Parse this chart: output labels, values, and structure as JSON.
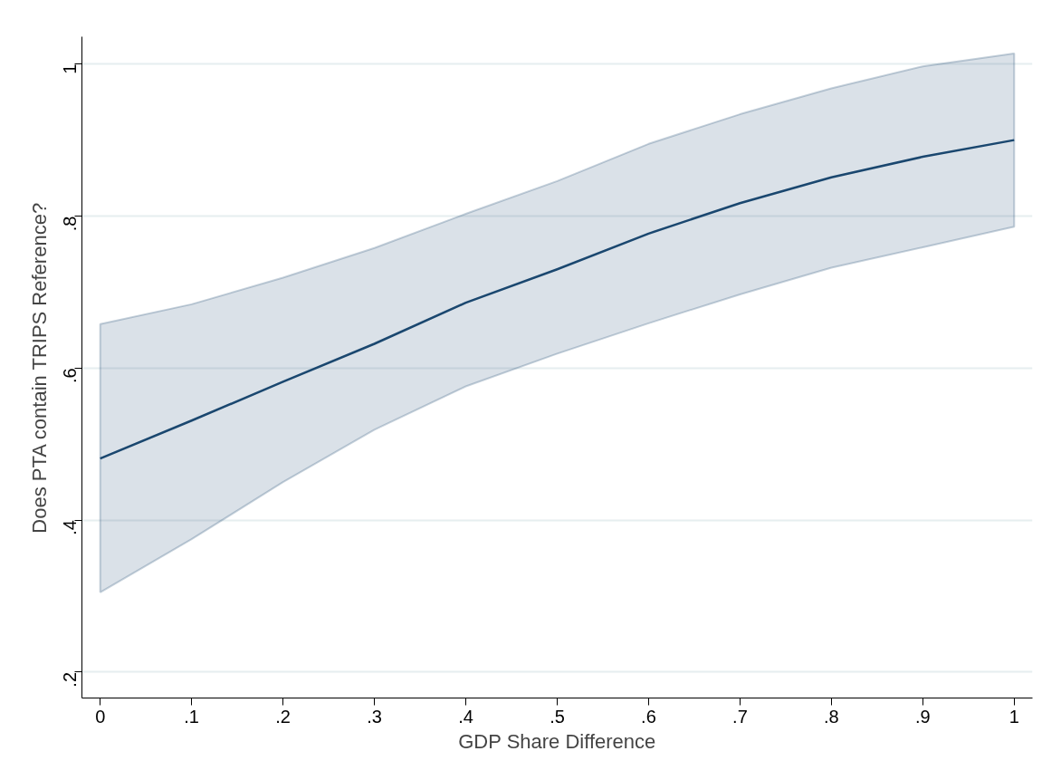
{
  "chart_data": {
    "type": "line",
    "xlabel": "GDP Share Difference",
    "ylabel": "Does PTA contain TRIPS Reference?",
    "x": [
      0,
      0.1,
      0.2,
      0.3,
      0.4,
      0.5,
      0.6,
      0.7,
      0.8,
      0.9,
      1
    ],
    "series": [
      {
        "color": "#1a476f",
        "values": [
          0.481,
          0.531,
          0.582,
          0.632,
          0.686,
          0.73,
          0.777,
          0.817,
          0.851,
          0.878,
          0.9
        ],
        "lower": [
          0.305,
          0.375,
          0.45,
          0.519,
          0.576,
          0.619,
          0.659,
          0.697,
          0.732,
          0.759,
          0.786
        ],
        "upper": [
          0.658,
          0.684,
          0.719,
          0.758,
          0.803,
          0.846,
          0.895,
          0.934,
          0.968,
          0.997,
          1.014
        ]
      }
    ],
    "xlim": [
      -0.02,
      1.02
    ],
    "ylim": [
      0.166,
      1.036
    ],
    "xticks": [
      {
        "value": 0,
        "label": "0"
      },
      {
        "value": 0.1,
        "label": ".1"
      },
      {
        "value": 0.2,
        "label": ".2"
      },
      {
        "value": 0.3,
        "label": ".3"
      },
      {
        "value": 0.4,
        "label": ".4"
      },
      {
        "value": 0.5,
        "label": ".5"
      },
      {
        "value": 0.6,
        "label": ".6"
      },
      {
        "value": 0.7,
        "label": ".7"
      },
      {
        "value": 0.8,
        "label": ".8"
      },
      {
        "value": 0.9,
        "label": ".9"
      },
      {
        "value": 1,
        "label": "1"
      }
    ],
    "yticks": [
      {
        "value": 0.2,
        "label": ".2"
      },
      {
        "value": 0.4,
        "label": ".4"
      },
      {
        "value": 0.6,
        "label": ".6"
      },
      {
        "value": 0.8,
        "label": ".8"
      },
      {
        "value": 1,
        "label": "1"
      }
    ],
    "grid": "y",
    "marker": "none",
    "line_style": "solid"
  }
}
